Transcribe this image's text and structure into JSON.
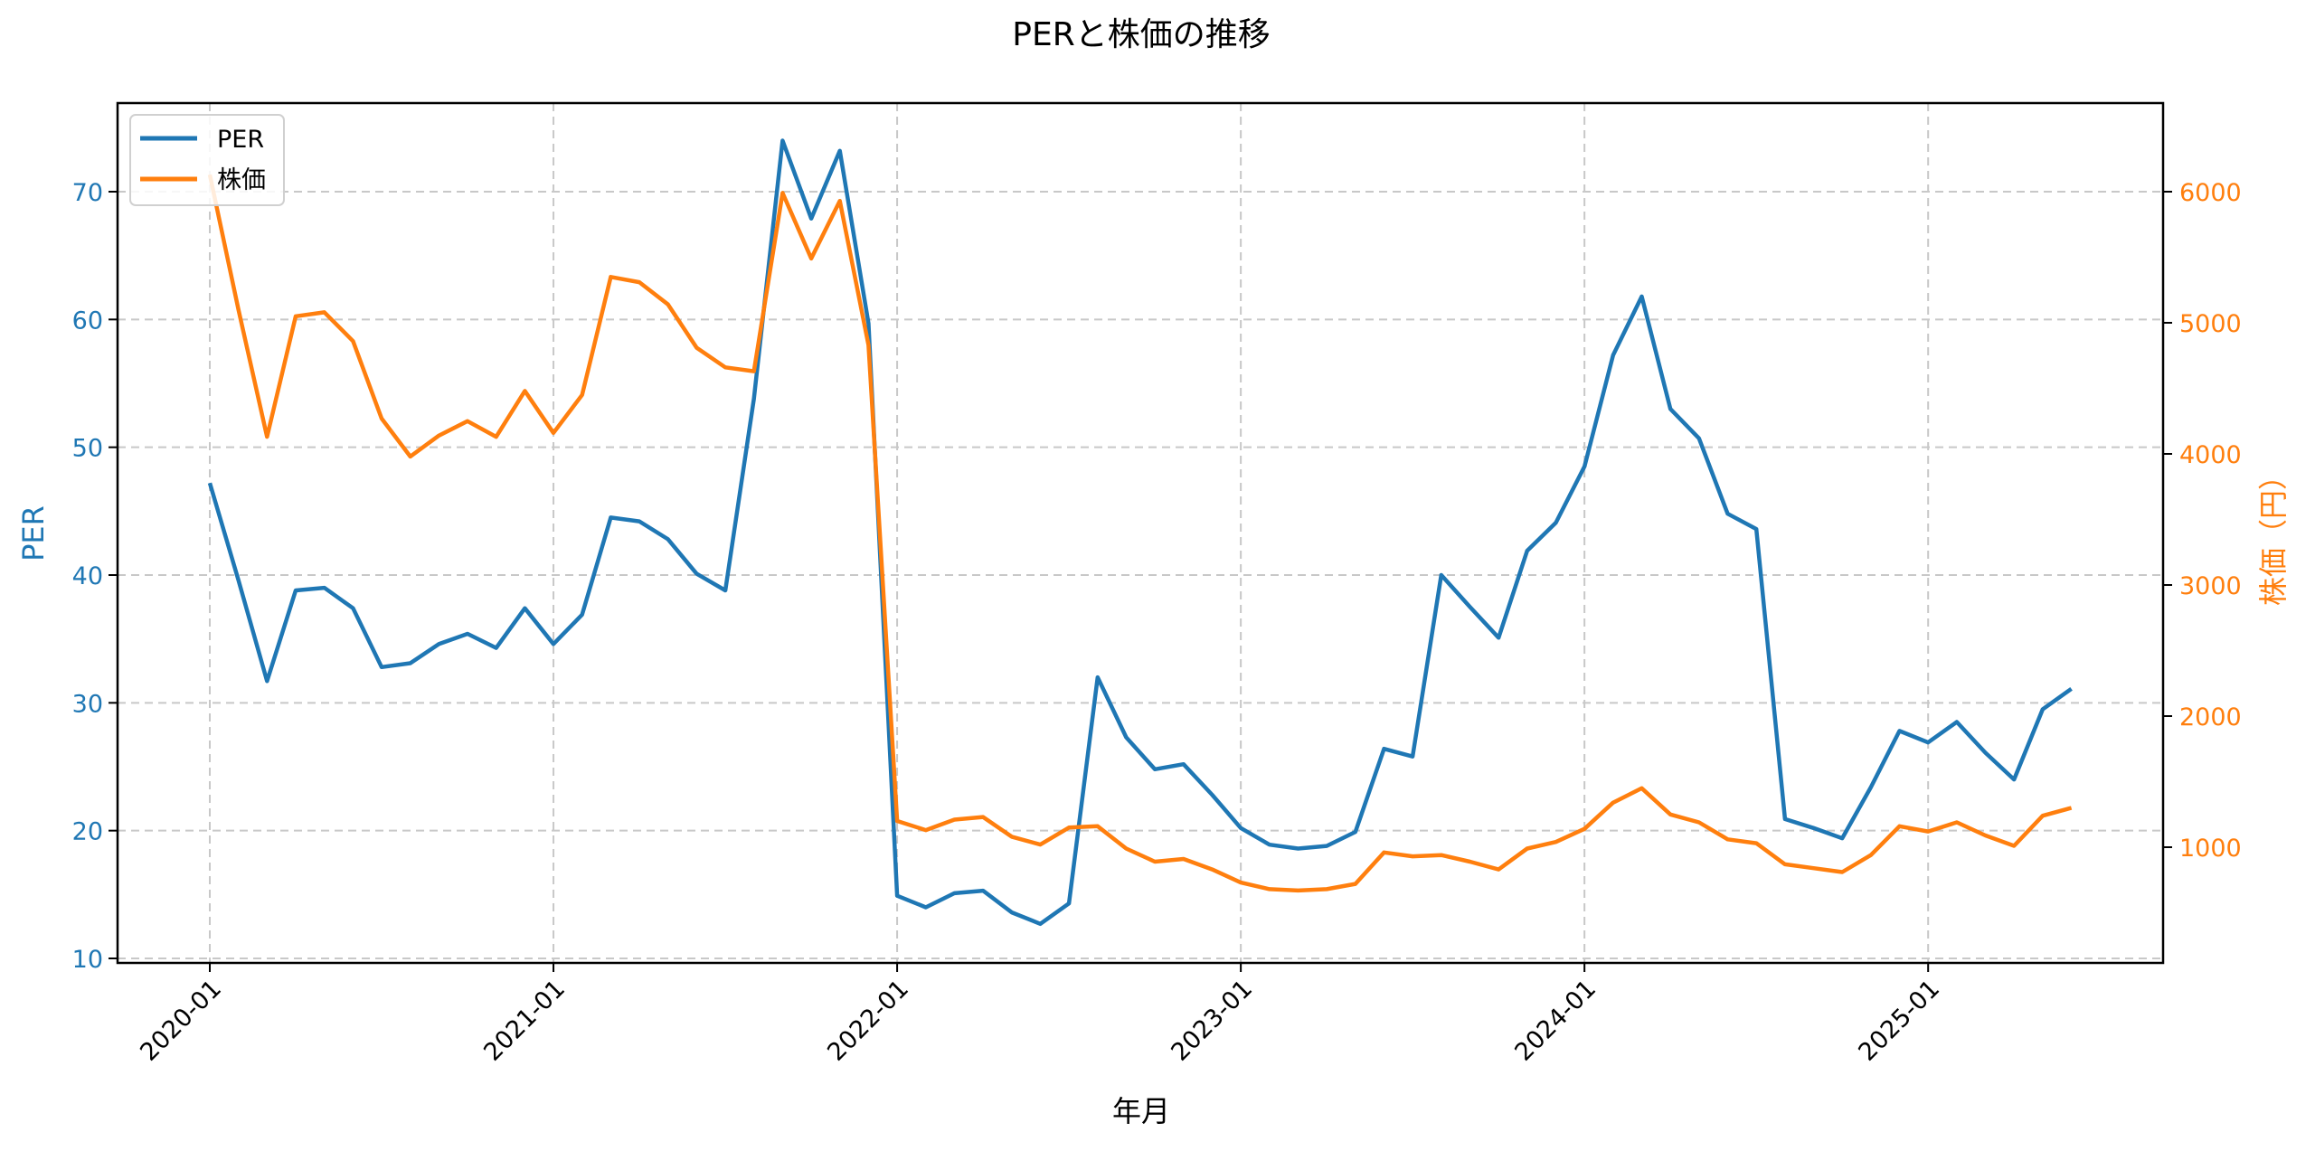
{
  "chart_data": {
    "type": "line",
    "title": "PERと株価の推移",
    "xlabel": "年月",
    "ylabel": "PER",
    "y2label": "株価（円）",
    "x_tick_labels": [
      "2020-01",
      "2021-01",
      "2022-01",
      "2023-01",
      "2024-01",
      "2025-01"
    ],
    "x_tick_rotation": 45,
    "y_ticks": [
      10,
      20,
      30,
      40,
      50,
      60,
      70
    ],
    "y2_ticks": [
      1000,
      2000,
      3000,
      4000,
      5000,
      6000
    ],
    "ylim": [
      9.5,
      77
    ],
    "y2lim": [
      100,
      6700
    ],
    "grid": true,
    "legend_position": "upper left",
    "x": [
      "2020-01",
      "2020-02",
      "2020-03",
      "2020-04",
      "2020-05",
      "2020-06",
      "2020-07",
      "2020-08",
      "2020-09",
      "2020-10",
      "2020-11",
      "2020-12",
      "2021-01",
      "2021-02",
      "2021-03",
      "2021-04",
      "2021-05",
      "2021-06",
      "2021-07",
      "2021-08",
      "2021-09",
      "2021-10",
      "2021-11",
      "2021-12",
      "2022-01",
      "2022-02",
      "2022-03",
      "2022-04",
      "2022-05",
      "2022-06",
      "2022-07",
      "2022-08",
      "2022-09",
      "2022-10",
      "2022-11",
      "2022-12",
      "2023-01",
      "2023-02",
      "2023-03",
      "2023-04",
      "2023-05",
      "2023-06",
      "2023-07",
      "2023-08",
      "2023-09",
      "2023-10",
      "2023-11",
      "2023-12",
      "2024-01",
      "2024-02",
      "2024-03",
      "2024-04",
      "2024-05",
      "2024-06",
      "2024-07",
      "2024-08",
      "2024-09",
      "2024-10",
      "2024-11",
      "2024-12",
      "2025-01",
      "2025-02",
      "2025-03",
      "2025-04",
      "2025-05",
      "2025-06"
    ],
    "series": [
      {
        "name": "PER",
        "axis": "left",
        "color": "#1f77b4",
        "values": [
          47.2,
          39.6,
          31.7,
          38.8,
          39.0,
          37.4,
          32.8,
          33.1,
          34.6,
          35.4,
          34.3,
          37.4,
          34.6,
          36.9,
          44.5,
          44.2,
          42.8,
          40.1,
          38.8,
          53.8,
          74.0,
          67.9,
          73.2,
          59.7,
          14.9,
          14.0,
          15.1,
          15.3,
          13.6,
          12.7,
          14.3,
          32.0,
          27.3,
          24.8,
          25.2,
          22.8,
          20.2,
          18.9,
          18.6,
          18.8,
          19.9,
          26.4,
          25.8,
          40.0,
          37.5,
          35.1,
          41.9,
          44.1,
          48.5,
          57.2,
          61.8,
          53.0,
          50.7,
          44.8,
          43.6,
          20.9,
          20.2,
          19.4,
          23.4,
          27.8,
          26.9,
          28.5,
          26.1,
          24.0,
          29.5,
          31.1
        ]
      },
      {
        "name": "株価",
        "axis": "right",
        "color": "#ff7f0e",
        "values": [
          6130,
          5100,
          4130,
          5050,
          5080,
          4860,
          4270,
          3980,
          4140,
          4250,
          4130,
          4480,
          4160,
          4450,
          5350,
          5310,
          5140,
          4810,
          4660,
          4630,
          5990,
          5490,
          5930,
          4830,
          1200,
          1130,
          1210,
          1230,
          1080,
          1020,
          1150,
          1160,
          990,
          890,
          910,
          830,
          730,
          680,
          670,
          680,
          720,
          960,
          930,
          940,
          890,
          830,
          990,
          1040,
          1140,
          1340,
          1450,
          1250,
          1190,
          1060,
          1030,
          870,
          840,
          810,
          940,
          1160,
          1120,
          1190,
          1090,
          1010,
          1240,
          1300
        ]
      }
    ]
  },
  "legend": {
    "items": [
      {
        "label": "PER",
        "color": "#1f77b4"
      },
      {
        "label": "株価",
        "color": "#ff7f0e"
      }
    ]
  },
  "colors": {
    "per": "#1f77b4",
    "price": "#ff7f0e",
    "grid": "#c8c8c8",
    "axis": "#000000"
  }
}
